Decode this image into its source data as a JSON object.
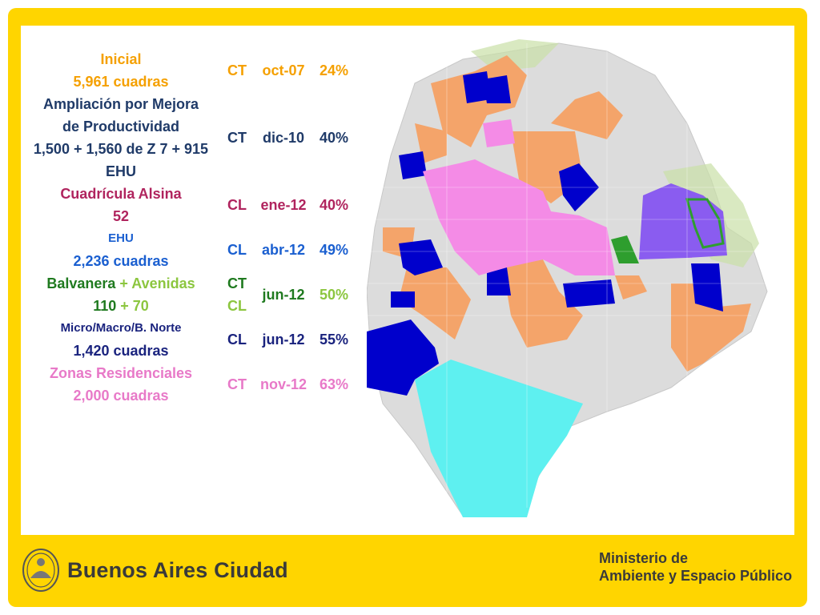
{
  "rows": [
    {
      "desc": [
        {
          "text": "Inicial",
          "color": "#f5a000"
        },
        {
          "text": "5,961 cuadras",
          "color": "#f5a000"
        }
      ],
      "type": [
        {
          "text": "CT",
          "color": "#f5a000"
        }
      ],
      "date": {
        "text": "oct-07",
        "color": "#f5a000"
      },
      "pct": {
        "text": "24%",
        "color": "#f5a000"
      }
    },
    {
      "desc": [
        {
          "text": "Ampliación por Mejora",
          "color": "#1f3a68"
        },
        {
          "text": "de Productividad",
          "color": "#1f3a68"
        },
        {
          "text": "1,500 + 1,560 de Z 7 + 915",
          "color": "#1f3a68"
        },
        {
          "text": "EHU",
          "color": "#1f3a68"
        }
      ],
      "type": [
        {
          "text": "CT",
          "color": "#1f3a68"
        }
      ],
      "date": {
        "text": "dic-10",
        "color": "#1f3a68"
      },
      "pct": {
        "text": "40%",
        "color": "#1f3a68"
      }
    },
    {
      "desc": [
        {
          "text": "Cuadrícula Alsina",
          "color": "#b0245e"
        },
        {
          "text": "52",
          "color": "#b0245e"
        }
      ],
      "type": [
        {
          "text": "CL",
          "color": "#b0245e"
        }
      ],
      "date": {
        "text": "ene-12",
        "color": "#b0245e"
      },
      "pct": {
        "text": "40%",
        "color": "#b0245e"
      }
    },
    {
      "desc": [
        {
          "text": "EHU",
          "color": "#1a5fd0",
          "small": true
        },
        {
          "text": "2,236 cuadras",
          "color": "#1a5fd0"
        }
      ],
      "type": [
        {
          "text": "CL",
          "color": "#1a5fd0"
        }
      ],
      "date": {
        "text": "abr-12",
        "color": "#1a5fd0"
      },
      "pct": {
        "text": "49%",
        "color": "#1a5fd0"
      }
    },
    {
      "desc": [
        {
          "text": "Balvanera",
          "extra": " + Avenidas",
          "color": "#1f7a1f",
          "extraColor": "#8cc63f"
        },
        {
          "text": "110",
          "extra": " + 70",
          "color": "#1f7a1f",
          "extraColor": "#8cc63f"
        }
      ],
      "type": [
        {
          "text": "CT",
          "color": "#1f7a1f"
        },
        {
          "text": "CL",
          "color": "#8cc63f"
        }
      ],
      "date": {
        "text": "jun-12",
        "color": "#1f7a1f"
      },
      "pct": {
        "text": "50%",
        "color": "#8cc63f"
      }
    },
    {
      "desc": [
        {
          "text": "Micro/Macro/B. Norte",
          "color": "#1a237e",
          "small": true
        },
        {
          "text": "1,420 cuadras",
          "color": "#1a237e"
        }
      ],
      "type": [
        {
          "text": "CL",
          "color": "#1a237e"
        }
      ],
      "date": {
        "text": "jun-12",
        "color": "#1a237e"
      },
      "pct": {
        "text": "55%",
        "color": "#1a237e"
      }
    },
    {
      "desc": [
        {
          "text": "Zonas Residenciales",
          "color": "#e879c8"
        },
        {
          "text": "2,000 cuadras",
          "color": "#e879c8"
        }
      ],
      "type": [
        {
          "text": "CT",
          "color": "#e879c8"
        }
      ],
      "date": {
        "text": "nov-12",
        "color": "#e879c8"
      },
      "pct": {
        "text": "63%",
        "color": "#e879c8"
      }
    }
  ],
  "footer": {
    "brand": "Buenos Aires Ciudad",
    "ministry_line1": "Ministerio de",
    "ministry_line2": "Ambiente y Espacio Público"
  },
  "map_colors": {
    "base": "#d9d9d9",
    "orange": "#f4a46a",
    "blue": "#0000cc",
    "pink": "#f48be6",
    "cyan": "#5ef0f0",
    "purple": "#8a5cf0",
    "green": "#2e9e2e",
    "park": "#b7d98a"
  }
}
